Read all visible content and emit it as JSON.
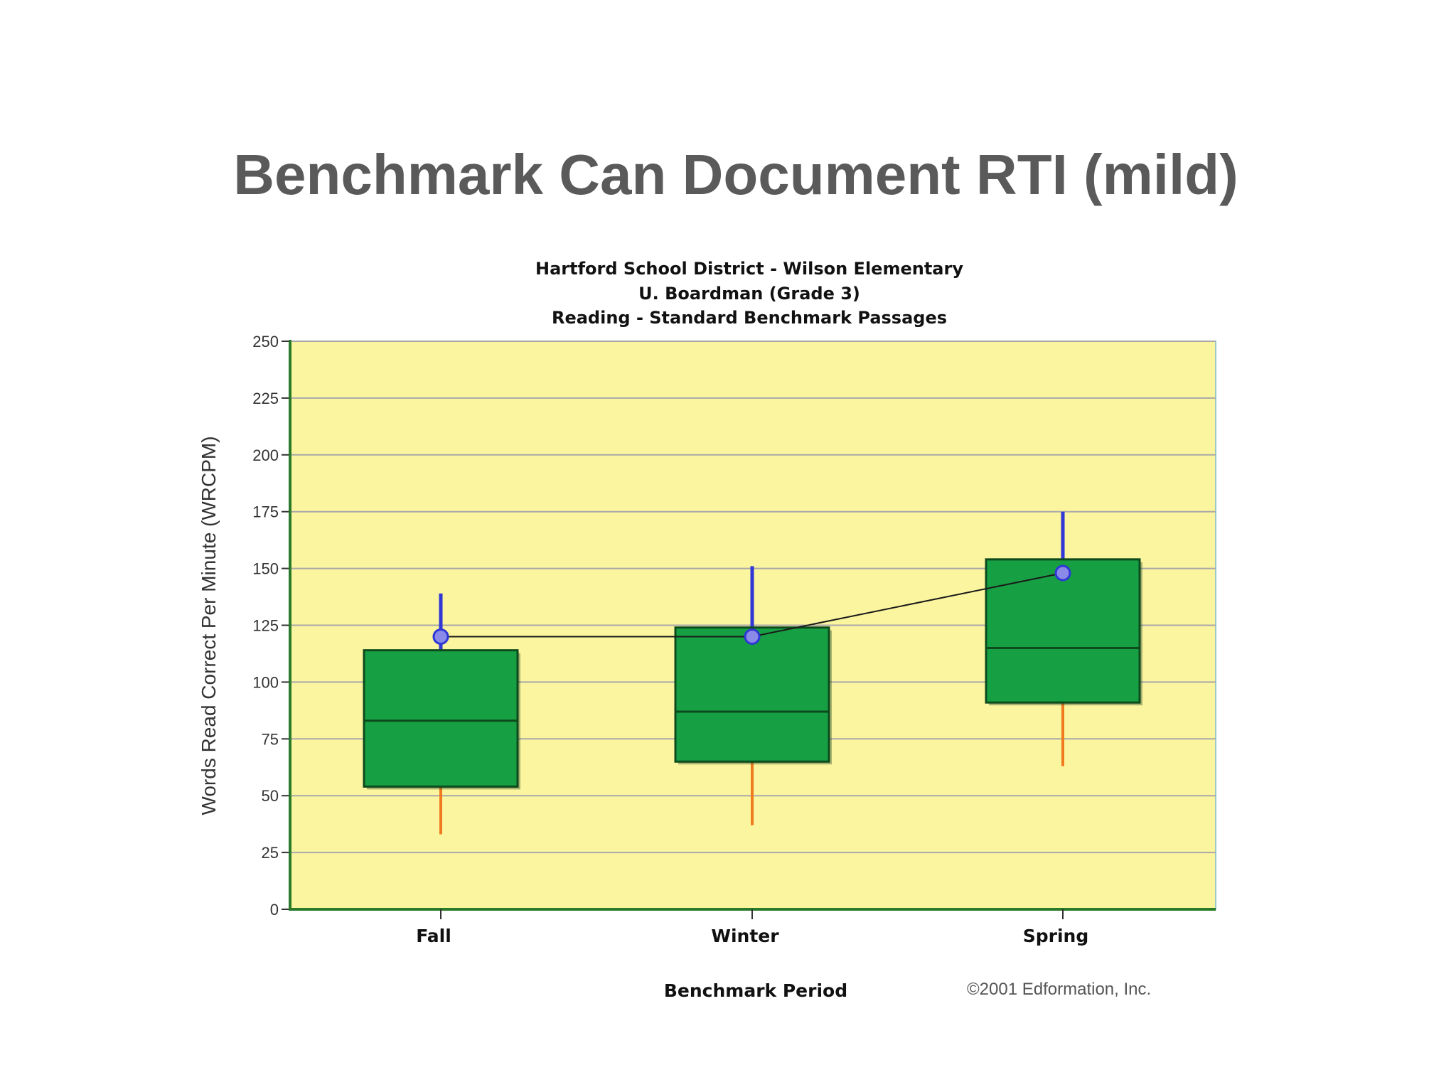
{
  "slide": {
    "title": "Benchmark Can Document RTI (mild)"
  },
  "chart_data": {
    "type": "box",
    "title_lines": [
      "Hartford School District - Wilson Elementary",
      "U. Boardman (Grade 3)",
      "Reading - Standard Benchmark Passages"
    ],
    "xlabel": "Benchmark Period",
    "ylabel": "Words Read Correct Per Minute (WRCPM)",
    "ylim": [
      0,
      250
    ],
    "yticks": [
      "0",
      "25",
      "50",
      "75",
      "100",
      "125",
      "150",
      "175",
      "200",
      "225",
      "250"
    ],
    "grid": true,
    "categories": [
      "Fall",
      "Winter",
      "Spring"
    ],
    "boxes": [
      {
        "category": "Fall",
        "whisker_low": 33,
        "q1": 54,
        "median": 83,
        "q3": 114,
        "whisker_high": 139
      },
      {
        "category": "Winter",
        "whisker_low": 37,
        "q1": 65,
        "median": 87,
        "q3": 124,
        "whisker_high": 151
      },
      {
        "category": "Spring",
        "whisker_low": 63,
        "q1": 91,
        "median": 115,
        "q3": 154,
        "whisker_high": 175
      }
    ],
    "student_series": {
      "values": [
        120,
        120,
        148
      ]
    },
    "copyright": "©2001 Edformation, Inc.",
    "colors": {
      "plot_bg": "#fcf5a0",
      "box_fill": "#17a043",
      "box_stroke": "#0d4a1c",
      "upper_whisker": "#2f37d6",
      "lower_whisker": "#f07a1e",
      "student_point": "#8a8ae8",
      "grid": "#a8a8a8",
      "axis": "#2a7a2a"
    }
  }
}
